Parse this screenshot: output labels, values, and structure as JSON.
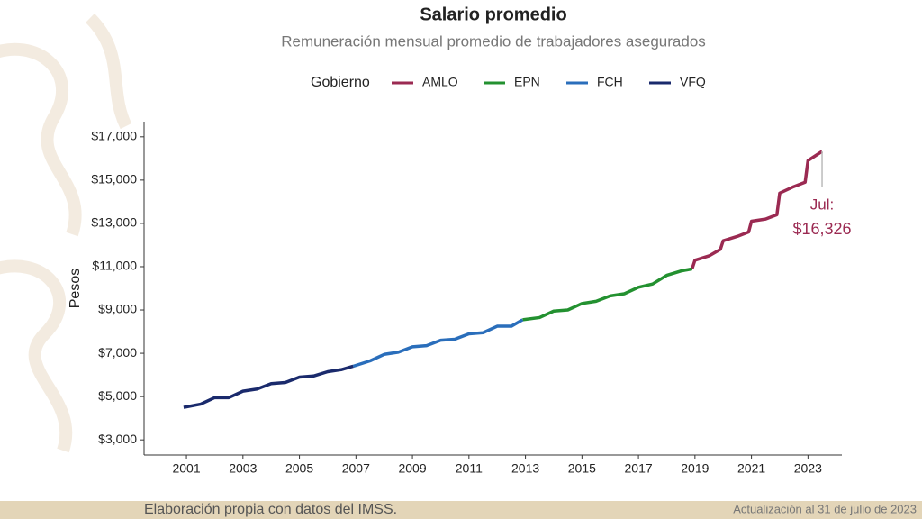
{
  "chart_data": {
    "type": "line",
    "title": "Salario promedio",
    "subtitle": "Remuneración mensual promedio de trabajadores asegurados",
    "legend_title": "Gobierno",
    "legend": "top",
    "y_label": "Pesos",
    "annotation": "Jul:",
    "xlim": [
      1999.5,
      2024.2
    ],
    "xticks": [
      2001,
      2003,
      2005,
      2007,
      2009,
      2011,
      2013,
      2015,
      2017,
      2019,
      2021,
      2023
    ],
    "ylim": [
      2300,
      17700
    ],
    "yticks": [
      {
        "value": 3000,
        "label": "$3,000"
      },
      {
        "value": 5000,
        "label": "$5,000"
      },
      {
        "value": 7000,
        "label": "$7,000"
      },
      {
        "value": 9000,
        "label": "$9,000"
      },
      {
        "value": 11000,
        "label": "$11,000"
      },
      {
        "value": 13000,
        "label": "$13,000"
      },
      {
        "value": 15000,
        "label": "$15,000"
      },
      {
        "value": 17000,
        "label": "$17,000"
      }
    ],
    "grid": false,
    "series": [
      {
        "name": "AMLO",
        "color": "#9b2a52",
        "x": [
          2018.9,
          2019.0,
          2019.5,
          2019.9,
          2020.0,
          2020.5,
          2020.9,
          2021.0,
          2021.5,
          2021.9,
          2022.0,
          2022.5,
          2022.9,
          2023.0,
          2023.5
        ],
        "values": [
          10900,
          11300,
          11500,
          11800,
          12200,
          12400,
          12600,
          13100,
          13200,
          13400,
          14400,
          14700,
          14900,
          15900,
          16326
        ],
        "value_labels": [
          null,
          null,
          null,
          null,
          null,
          null,
          null,
          null,
          null,
          null,
          null,
          null,
          null,
          null,
          "$16,326"
        ]
      },
      {
        "name": "EPN",
        "color": "#239130",
        "x": [
          2012.9,
          2013.5,
          2014.0,
          2014.5,
          2015.0,
          2015.5,
          2016.0,
          2016.5,
          2017.0,
          2017.5,
          2018.0,
          2018.5,
          2018.9
        ],
        "values": [
          8550,
          8650,
          8950,
          9000,
          9300,
          9400,
          9650,
          9750,
          10050,
          10200,
          10600,
          10800,
          10900
        ]
      },
      {
        "name": "FCH",
        "color": "#2a6ebb",
        "x": [
          2006.9,
          2007.5,
          2008.0,
          2008.5,
          2009.0,
          2009.5,
          2010.0,
          2010.5,
          2011.0,
          2011.5,
          2012.0,
          2012.5,
          2012.9
        ],
        "values": [
          6400,
          6650,
          6950,
          7050,
          7300,
          7350,
          7600,
          7650,
          7900,
          7950,
          8250,
          8250,
          8550
        ]
      },
      {
        "name": "VFQ",
        "color": "#1a2a6c",
        "x": [
          2000.9,
          2001.5,
          2002.0,
          2002.5,
          2003.0,
          2003.5,
          2004.0,
          2004.5,
          2005.0,
          2005.5,
          2006.0,
          2006.5,
          2006.9
        ],
        "values": [
          4500,
          4650,
          4950,
          4950,
          5250,
          5350,
          5600,
          5650,
          5900,
          5950,
          6150,
          6250,
          6400
        ]
      }
    ]
  },
  "footer": {
    "source": "Elaboración propia con datos del IMSS.",
    "updated": "Actualización al 31 de julio de 2023"
  }
}
